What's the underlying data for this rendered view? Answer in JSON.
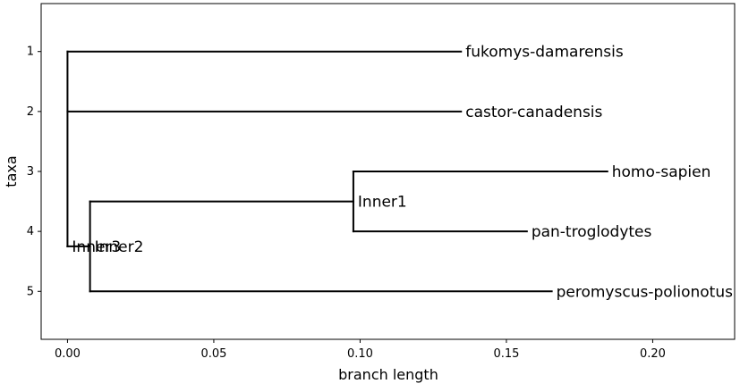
{
  "chart_data": {
    "type": "dendrogram",
    "title": "",
    "xlabel": "branch length",
    "ylabel": "taxa",
    "xlim": [
      -0.009,
      0.228
    ],
    "ylim": [
      5.8,
      0.2
    ],
    "xticks": [
      0.0,
      0.05,
      0.1,
      0.15,
      0.2
    ],
    "xtick_labels": [
      "0.00",
      "0.05",
      "0.10",
      "0.15",
      "0.20"
    ],
    "yticks": [
      1,
      2,
      3,
      4,
      5
    ],
    "ytick_labels": [
      "1",
      "2",
      "3",
      "4",
      "5"
    ],
    "nodes": [
      {
        "id": "root",
        "label": "",
        "x": 0.0,
        "y": 1.0
      },
      {
        "id": "fukomys",
        "label": "fukomys-damarensis",
        "parent": "root",
        "x": 0.1345,
        "y": 1.0
      },
      {
        "id": "castor",
        "label": "castor-canadensis",
        "parent": "root",
        "x": 0.1345,
        "y": 2.0
      },
      {
        "id": "inner3",
        "label": "Inner3",
        "parent": "root",
        "x": 0.0,
        "y": 4.25
      },
      {
        "id": "inner2",
        "label": "Inner2",
        "parent": "inner3",
        "x": 0.0077,
        "y": 4.25
      },
      {
        "id": "inner1",
        "label": "Inner1",
        "parent": "inner2",
        "x": 0.0977,
        "y": 3.5
      },
      {
        "id": "homo",
        "label": "homo-sapien",
        "parent": "inner1",
        "x": 0.1845,
        "y": 3.0
      },
      {
        "id": "pan",
        "label": "pan-troglodytes",
        "parent": "inner1",
        "x": 0.157,
        "y": 4.0
      },
      {
        "id": "peromyscus",
        "label": "peromyscus-polionotus",
        "parent": "inner2",
        "x": 0.1655,
        "y": 5.0
      }
    ]
  }
}
